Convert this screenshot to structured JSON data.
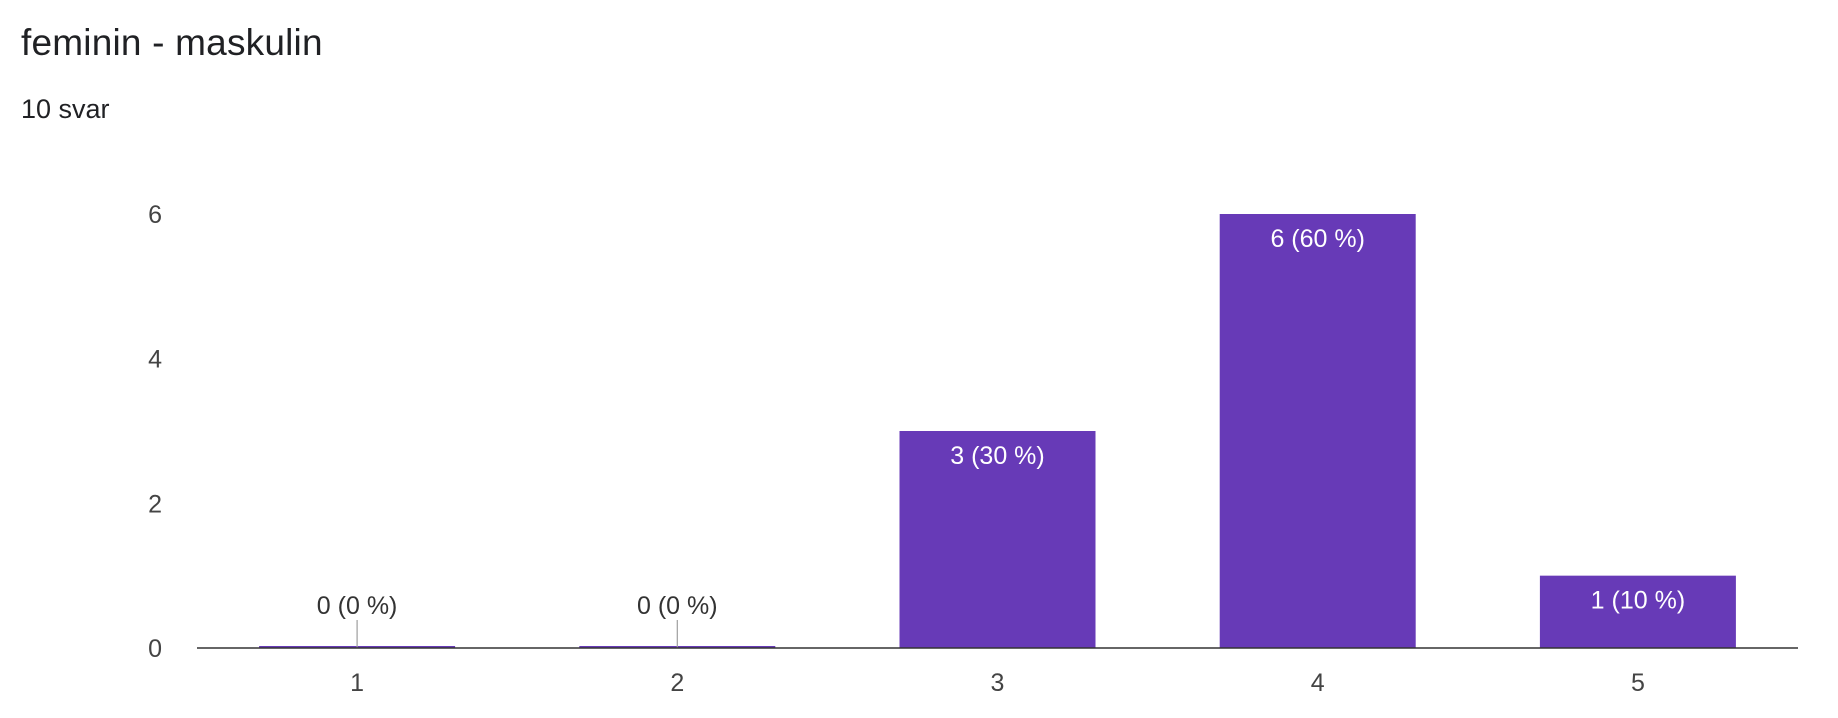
{
  "header": {
    "title": "feminin - maskulin",
    "subtitle": "10 svar"
  },
  "colors": {
    "bar": "#673ab7",
    "axis": "#333333",
    "tick_text": "#444444",
    "label_inside": "#ffffff",
    "label_outside": "#333333",
    "zero_marker": "#9e9e9e"
  },
  "chart_data": {
    "type": "bar",
    "title": "feminin - maskulin",
    "subtitle": "10 svar",
    "categories": [
      "1",
      "2",
      "3",
      "4",
      "5"
    ],
    "values": [
      0,
      0,
      3,
      6,
      1
    ],
    "data_labels": [
      "0 (0 %)",
      "0 (0 %)",
      "3 (30 %)",
      "6 (60 %)",
      "1 (10 %)"
    ],
    "y_ticks": [
      "0",
      "2",
      "4",
      "6"
    ],
    "ylim": [
      0,
      6
    ],
    "xlabel": "",
    "ylabel": "",
    "grid": false,
    "legend": "none"
  }
}
